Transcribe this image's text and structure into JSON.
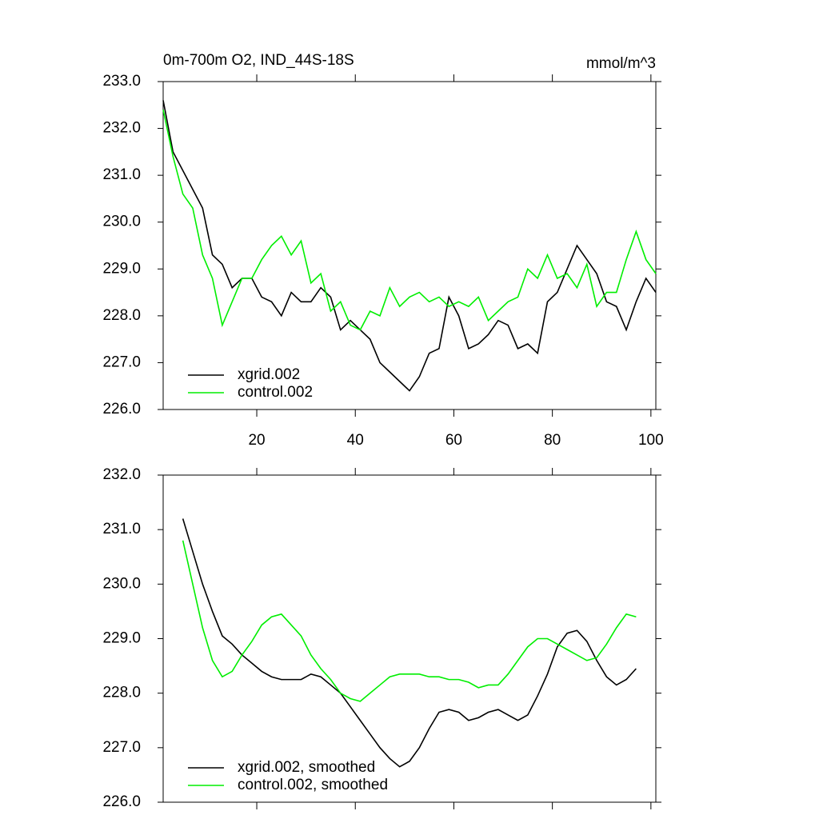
{
  "chart_data": [
    {
      "type": "line",
      "title": "0m-700m O2, IND_44S-18S",
      "units": "mmol/m^3",
      "x": [
        1,
        3,
        5,
        7,
        9,
        11,
        13,
        15,
        17,
        19,
        21,
        23,
        25,
        27,
        29,
        31,
        33,
        35,
        37,
        39,
        41,
        43,
        45,
        47,
        49,
        51,
        53,
        55,
        57,
        59,
        61,
        63,
        65,
        67,
        69,
        71,
        73,
        75,
        77,
        79,
        81,
        83,
        85,
        87,
        89,
        91,
        93,
        95,
        97,
        99,
        101
      ],
      "series": [
        {
          "name": "xgrid.002",
          "color": "#000000",
          "values": [
            232.6,
            231.5,
            231.1,
            230.7,
            230.3,
            229.3,
            229.1,
            228.6,
            228.8,
            228.8,
            228.4,
            228.3,
            228.0,
            228.5,
            228.3,
            228.3,
            228.6,
            228.4,
            227.7,
            227.9,
            227.7,
            227.5,
            227.0,
            226.8,
            226.6,
            226.4,
            226.7,
            227.2,
            227.3,
            228.4,
            228.0,
            227.3,
            227.4,
            227.6,
            227.9,
            227.8,
            227.3,
            227.4,
            227.2,
            228.3,
            228.5,
            229.0,
            229.5,
            229.2,
            228.9,
            228.3,
            228.2,
            227.7,
            228.3,
            228.8,
            228.5
          ]
        },
        {
          "name": "control.002",
          "color": "#00ee00",
          "values": [
            232.4,
            231.4,
            230.6,
            230.3,
            229.3,
            228.8,
            227.8,
            228.3,
            228.8,
            228.8,
            229.2,
            229.5,
            229.7,
            229.3,
            229.6,
            228.7,
            228.9,
            228.1,
            228.3,
            227.8,
            227.7,
            228.1,
            228.0,
            228.6,
            228.2,
            228.4,
            228.5,
            228.3,
            228.4,
            228.2,
            228.3,
            228.2,
            228.4,
            227.9,
            228.1,
            228.3,
            228.4,
            229.0,
            228.8,
            229.3,
            228.8,
            228.9,
            228.6,
            229.1,
            228.2,
            228.5,
            228.5,
            229.2,
            229.8,
            229.2,
            228.9
          ]
        }
      ],
      "xlim": [
        1,
        101
      ],
      "xticks": [
        20,
        40,
        60,
        80,
        100
      ],
      "xtick_labels": true,
      "ylim": [
        226,
        233
      ],
      "yticks": [
        {
          "value": 226,
          "label": "226.0"
        },
        {
          "value": 227,
          "label": "227.0"
        },
        {
          "value": 228,
          "label": "228.0"
        },
        {
          "value": 229,
          "label": "229.0"
        },
        {
          "value": 230,
          "label": "230.0"
        },
        {
          "value": 231,
          "label": "231.0"
        },
        {
          "value": 232,
          "label": "232.0"
        },
        {
          "value": 233,
          "label": "233.0"
        }
      ],
      "legend": "lower left"
    },
    {
      "type": "line",
      "x": [
        5,
        7,
        9,
        11,
        13,
        15,
        17,
        19,
        21,
        23,
        25,
        27,
        29,
        31,
        33,
        35,
        37,
        39,
        41,
        43,
        45,
        47,
        49,
        51,
        53,
        55,
        57,
        59,
        61,
        63,
        65,
        67,
        69,
        71,
        73,
        75,
        77,
        79,
        81,
        83,
        85,
        87,
        89,
        91,
        93,
        95,
        97
      ],
      "series": [
        {
          "name": "xgrid.002, smoothed",
          "color": "#000000",
          "values": [
            231.2,
            230.6,
            230.0,
            229.5,
            229.05,
            228.9,
            228.7,
            228.55,
            228.4,
            228.3,
            228.25,
            228.25,
            228.25,
            228.35,
            228.3,
            228.15,
            228.0,
            227.75,
            227.5,
            227.25,
            227.0,
            226.8,
            226.65,
            226.75,
            227.0,
            227.35,
            227.65,
            227.7,
            227.65,
            227.5,
            227.55,
            227.65,
            227.7,
            227.6,
            227.5,
            227.6,
            227.95,
            228.35,
            228.85,
            229.1,
            229.15,
            228.95,
            228.6,
            228.3,
            228.15,
            228.25,
            228.45
          ]
        },
        {
          "name": "control.002, smoothed",
          "color": "#00ee00",
          "values": [
            230.8,
            230.0,
            229.2,
            228.6,
            228.3,
            228.4,
            228.7,
            228.95,
            229.25,
            229.4,
            229.45,
            229.25,
            229.05,
            228.7,
            228.45,
            228.25,
            228.0,
            227.9,
            227.85,
            228.0,
            228.15,
            228.3,
            228.35,
            228.35,
            228.35,
            228.3,
            228.3,
            228.25,
            228.25,
            228.2,
            228.1,
            228.15,
            228.15,
            228.35,
            228.6,
            228.85,
            229.0,
            229.0,
            228.9,
            228.8,
            228.7,
            228.6,
            228.65,
            228.9,
            229.2,
            229.45,
            229.4
          ]
        }
      ],
      "xlim": [
        1,
        101
      ],
      "xticks": [
        20,
        40,
        60,
        80,
        100
      ],
      "xtick_labels": false,
      "ylim": [
        226,
        232
      ],
      "yticks": [
        {
          "value": 226,
          "label": "226.0"
        },
        {
          "value": 227,
          "label": "227.0"
        },
        {
          "value": 228,
          "label": "228.0"
        },
        {
          "value": 229,
          "label": "229.0"
        },
        {
          "value": 230,
          "label": "230.0"
        },
        {
          "value": 231,
          "label": "231.0"
        },
        {
          "value": 232,
          "label": "232.0"
        }
      ],
      "legend": "lower left"
    }
  ]
}
